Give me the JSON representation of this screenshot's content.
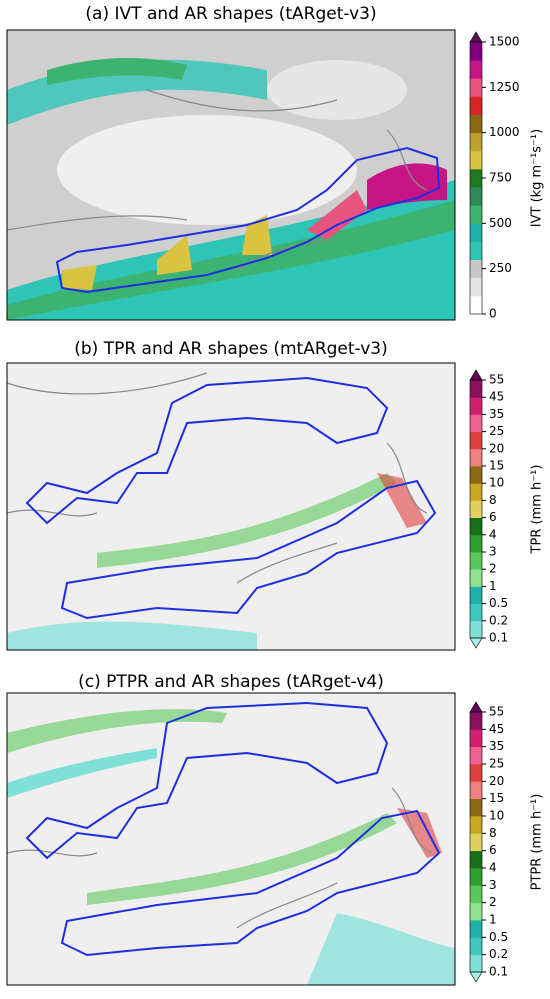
{
  "chart_data": [
    {
      "type": "map",
      "title": "(a) IVT and AR shapes (tARget-v3)",
      "colorbar": {
        "label": "IVT (kg m⁻¹s⁻¹)",
        "clim": [
          0,
          1500
        ],
        "ticks": [
          0,
          250,
          500,
          750,
          1000,
          1250,
          1500
        ],
        "extend": "max",
        "colors": [
          "#ffffff",
          "#e6e6e6",
          "#c8c8c8",
          "#2ec4b6",
          "#1fb0a8",
          "#3cb371",
          "#2e8b57",
          "#1f7a1f",
          "#d8c440",
          "#bca030",
          "#8b6914",
          "#d62728",
          "#e75480",
          "#c71585",
          "#800080"
        ],
        "extend_color": "#5b0f5b"
      }
    },
    {
      "type": "map",
      "title": "(b) TPR and AR shapes (mtARget-v3)",
      "colorbar": {
        "label": "TPR (mm h⁻¹)",
        "ticks": [
          0.1,
          0.2,
          0.5,
          1,
          2,
          3,
          4,
          6,
          8,
          10,
          15,
          20,
          25,
          35,
          45,
          55
        ],
        "extend": "both",
        "colors": [
          "#7fe0d8",
          "#40c8c0",
          "#20b0a8",
          "#90e090",
          "#5cc85c",
          "#2ea02e",
          "#1a6e1a",
          "#e0d060",
          "#c8a820",
          "#8b6914",
          "#f08080",
          "#e04040",
          "#f06090",
          "#d02070",
          "#8b1060"
        ],
        "extend_color": "#600060",
        "low_color": "#a8f0ec"
      }
    },
    {
      "type": "map",
      "title": "(c) PTPR and AR shapes (tARget-v4)",
      "colorbar": {
        "label": "PTPR (mm h⁻¹)",
        "ticks": [
          0.1,
          0.2,
          0.5,
          1,
          2,
          3,
          4,
          6,
          8,
          10,
          15,
          20,
          25,
          35,
          45,
          55
        ],
        "extend": "both",
        "colors": [
          "#7fe0d8",
          "#40c8c0",
          "#20b0a8",
          "#90e090",
          "#5cc85c",
          "#2ea02e",
          "#1a6e1a",
          "#e0d060",
          "#c8a820",
          "#8b6914",
          "#f08080",
          "#e04040",
          "#f06090",
          "#d02070",
          "#8b1060"
        ],
        "extend_color": "#600060",
        "low_color": "#a8f0ec"
      }
    }
  ]
}
